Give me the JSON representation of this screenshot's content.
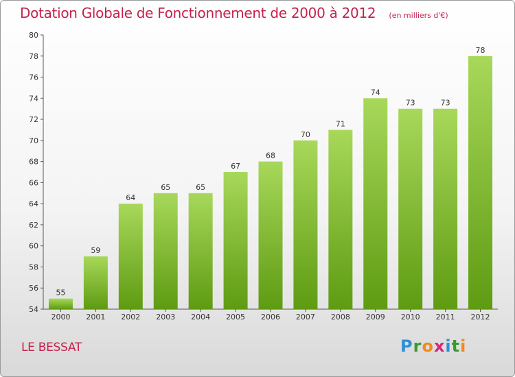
{
  "header": {
    "title": "Dotation Globale de Fonctionnement de 2000 à 2012",
    "unit": "(en milliers d'€)"
  },
  "footer": {
    "commune": "LE BESSAT",
    "logo_letters": [
      "P",
      "r",
      "o",
      "x",
      "i",
      "t",
      "i"
    ],
    "logo_colors": [
      "#2f8fd6",
      "#3a9a2f",
      "#f08a1c",
      "#d6287a",
      "#2f8fd6",
      "#3a9a2f",
      "#f08a1c"
    ]
  },
  "colors": {
    "bar_light": "#a8d85a",
    "bar_dark": "#5e9b12",
    "title": "#c4224b",
    "axis": "#555555"
  },
  "chart_data": {
    "type": "bar",
    "title": "Dotation Globale de Fonctionnement de 2000 à 2012",
    "subtitle": "(en milliers d'€)",
    "xlabel": "",
    "ylabel": "",
    "categories": [
      "2000",
      "2001",
      "2002",
      "2003",
      "2004",
      "2005",
      "2006",
      "2007",
      "2008",
      "2009",
      "2010",
      "2011",
      "2012"
    ],
    "values": [
      55,
      59,
      64,
      65,
      65,
      67,
      68,
      70,
      71,
      74,
      73,
      73,
      78
    ],
    "ylim": [
      54,
      80
    ],
    "yticks": [
      54,
      56,
      58,
      60,
      62,
      64,
      66,
      68,
      70,
      72,
      74,
      76,
      78,
      80
    ],
    "grid": false,
    "legend": "none"
  }
}
